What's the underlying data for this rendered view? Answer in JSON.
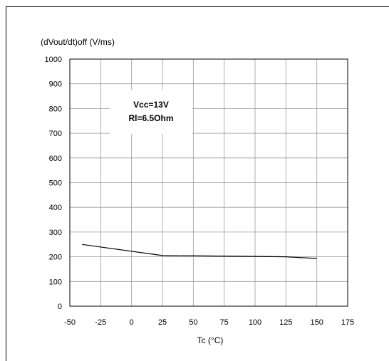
{
  "chart_data": {
    "type": "line",
    "ylabel": "(dVout/dt)off (V/ms)",
    "xlabel": "Tc (°C)",
    "xlim": [
      -50,
      175
    ],
    "ylim": [
      0,
      1000
    ],
    "x_ticks": [
      -50,
      -25,
      0,
      25,
      50,
      75,
      100,
      125,
      150,
      175
    ],
    "y_ticks": [
      0,
      100,
      200,
      300,
      400,
      500,
      600,
      700,
      800,
      900,
      1000
    ],
    "grid": true,
    "annotation": [
      "Vcc=13V",
      "Rl=6.5Ohm"
    ],
    "series": [
      {
        "x": [
          -40,
          25,
          125,
          150
        ],
        "y": [
          250,
          205,
          200,
          193
        ]
      }
    ]
  }
}
